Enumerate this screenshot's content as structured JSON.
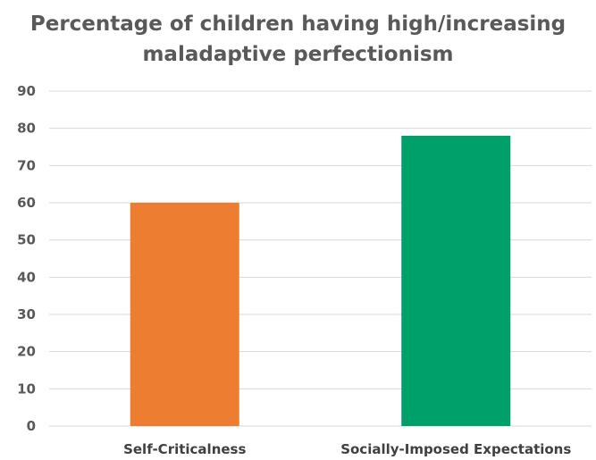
{
  "chart_data": {
    "type": "bar",
    "title": "Percentage of children having high/increasing maladaptive perfectionism",
    "title_lines": [
      "Percentage of children having high/increasing",
      "maladaptive perfectionism"
    ],
    "categories": [
      "Self-Criticalness",
      "Socially-Imposed Expectations"
    ],
    "values": [
      60,
      78
    ],
    "bar_colors": [
      "#ED7D31",
      "#00A06A"
    ],
    "xlabel": "",
    "ylabel": "",
    "ylim": [
      0,
      90
    ],
    "yticks": [
      0,
      10,
      20,
      30,
      40,
      50,
      60,
      70,
      80,
      90
    ],
    "grid": true,
    "legend": "none"
  },
  "colors": {
    "title": "#595959",
    "tick_text": "#595959",
    "gridline": "#D9D9D9"
  }
}
